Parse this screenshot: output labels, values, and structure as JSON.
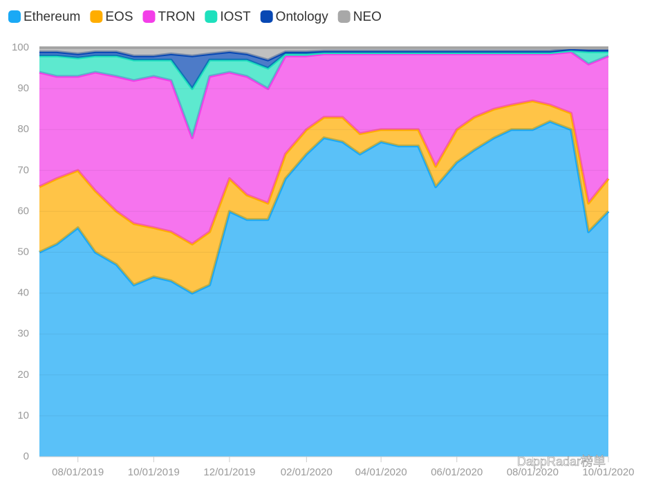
{
  "chart_data": {
    "type": "stacked-area",
    "x": [
      "07/01/2019",
      "07/15/2019",
      "08/01/2019",
      "08/15/2019",
      "09/01/2019",
      "09/15/2019",
      "10/01/2019",
      "10/15/2019",
      "11/01/2019",
      "11/15/2019",
      "12/01/2019",
      "12/15/2019",
      "01/01/2020",
      "01/15/2020",
      "02/01/2020",
      "02/15/2020",
      "03/01/2020",
      "03/15/2020",
      "04/01/2020",
      "04/15/2020",
      "05/01/2020",
      "05/15/2020",
      "06/01/2020",
      "06/15/2020",
      "07/01/2020",
      "07/15/2020",
      "08/01/2020",
      "08/15/2020",
      "09/01/2020",
      "09/15/2020",
      "10/01/2020"
    ],
    "series": [
      {
        "name": "Ethereum",
        "color": "#1aa9f5",
        "values": [
          50,
          52,
          56,
          50,
          47,
          42,
          44,
          43,
          40,
          42,
          60,
          58,
          58,
          68,
          74,
          78,
          77,
          74,
          77,
          76,
          76,
          66,
          72,
          75,
          78,
          80,
          80,
          82,
          80,
          55,
          60
        ]
      },
      {
        "name": "EOS",
        "color": "#ffad00",
        "values": [
          16,
          16,
          14,
          15,
          13,
          15,
          12,
          12,
          12,
          13,
          8,
          6,
          4,
          6,
          6,
          5,
          6,
          5,
          3,
          4,
          4,
          5,
          8,
          8,
          7,
          6,
          7,
          4,
          4,
          7,
          8
        ]
      },
      {
        "name": "TRON",
        "color": "#f33ee8",
        "values": [
          28,
          25,
          23,
          29,
          33,
          35,
          37,
          37,
          26,
          38,
          26,
          29,
          28,
          24,
          18,
          15.5,
          15.5,
          19.5,
          18.5,
          18.5,
          18.5,
          27.5,
          18.5,
          15.5,
          13.5,
          12.5,
          11.5,
          12.5,
          15,
          34,
          30
        ]
      },
      {
        "name": "IOST",
        "color": "#1ee0bd",
        "values": [
          4,
          5,
          4.5,
          4,
          5,
          5,
          4,
          5,
          12,
          4,
          3,
          4,
          5,
          0.5,
          0.5,
          0.3,
          0.3,
          0.3,
          0.3,
          0.3,
          0.3,
          0.3,
          0.3,
          0.3,
          0.3,
          0.3,
          0.3,
          0.3,
          0.3,
          3,
          1
        ]
      },
      {
        "name": "Ontology",
        "color": "#0848b3",
        "values": [
          1,
          1,
          1,
          1,
          1,
          1,
          1,
          1.5,
          8,
          1.5,
          2,
          1.5,
          2,
          0.5,
          0.5,
          0.4,
          0.4,
          0.4,
          0.4,
          0.4,
          0.4,
          0.4,
          0.4,
          0.4,
          0.4,
          0.4,
          0.4,
          0.4,
          0.4,
          0.5,
          0.5
        ]
      },
      {
        "name": "NEO",
        "color": "#a8a8a8",
        "values": [
          1,
          1,
          1.5,
          1,
          1,
          2,
          2,
          1.5,
          2,
          1.5,
          1,
          1.5,
          3,
          1,
          1,
          0.8,
          0.8,
          0.8,
          0.8,
          0.8,
          0.8,
          0.8,
          0.8,
          0.8,
          0.8,
          0.8,
          0.8,
          0.8,
          0.3,
          0.5,
          0.5
        ]
      }
    ],
    "xlim": [
      "07/01/2019",
      "10/01/2020"
    ],
    "xticks": [
      "08/01/2019",
      "10/01/2019",
      "12/01/2019",
      "02/01/2020",
      "04/01/2020",
      "06/01/2020",
      "08/01/2020",
      "10/01/2020"
    ],
    "ylim": [
      0,
      100
    ],
    "yticks": [
      0,
      10,
      20,
      30,
      40,
      50,
      60,
      70,
      80,
      90,
      100
    ],
    "grid": true,
    "watermark": "DappRadar榜单"
  }
}
